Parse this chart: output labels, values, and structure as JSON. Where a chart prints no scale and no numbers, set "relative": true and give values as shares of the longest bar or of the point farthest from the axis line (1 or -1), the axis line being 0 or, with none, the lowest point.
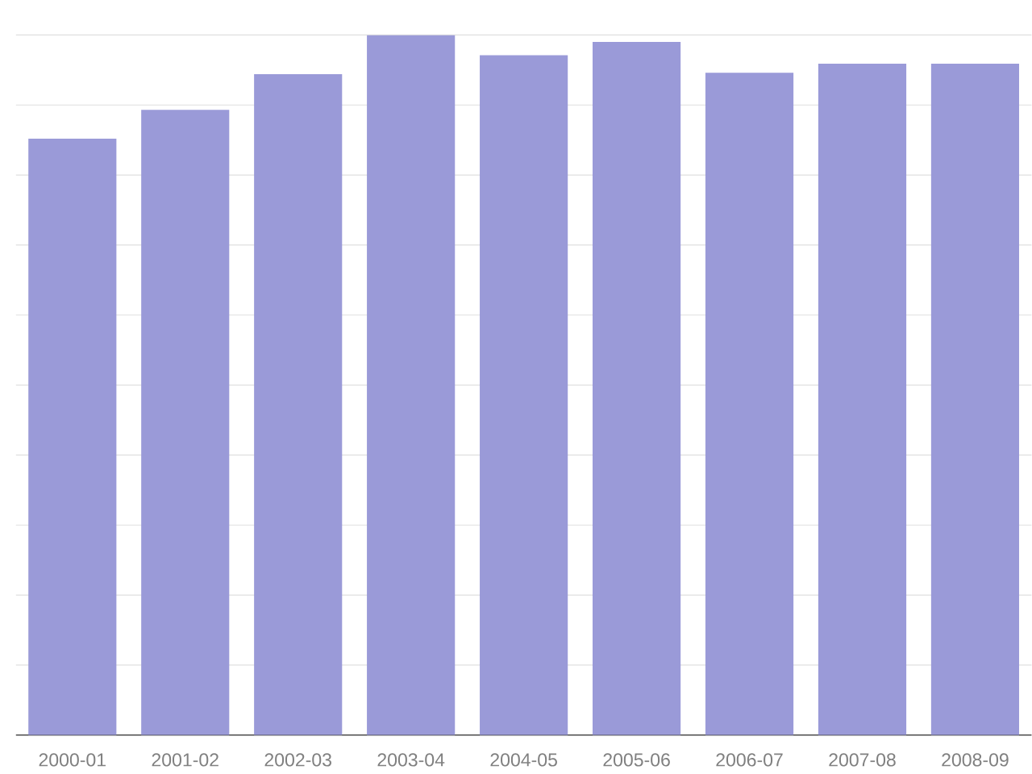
{
  "chart_data": {
    "type": "bar",
    "relative": true,
    "categories": [
      "2000-01",
      "2001-02",
      "2002-03",
      "2003-04",
      "2004-05",
      "2005-06",
      "2006-07",
      "2007-08",
      "2008-09"
    ],
    "values": [
      0.852,
      0.893,
      0.944,
      1,
      0.971,
      0.99,
      0.946,
      0.959,
      0.959
    ],
    "color": "#9a9ad8",
    "grid": "y"
  }
}
